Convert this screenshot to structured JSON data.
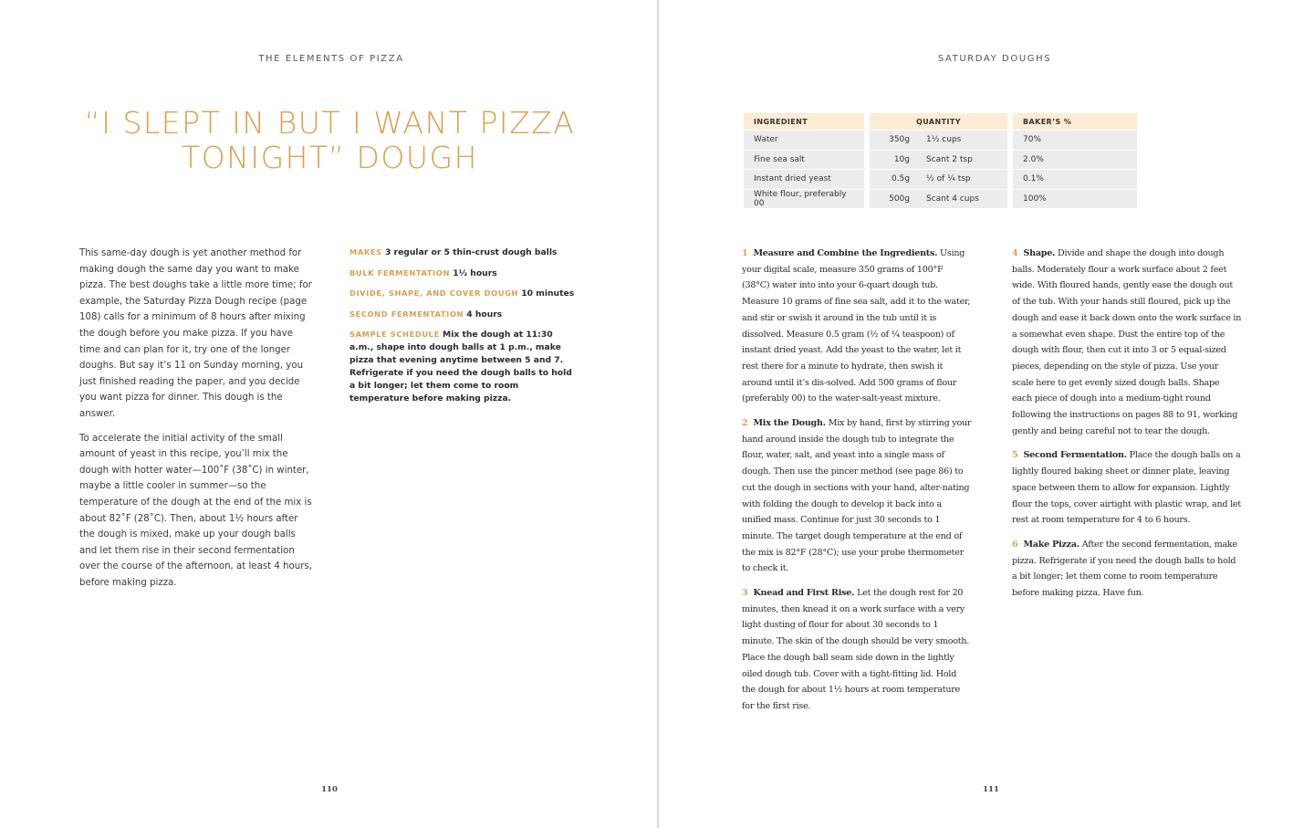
{
  "left_page": {
    "running_head": "THE ELEMENTS OF PIZZA",
    "title_line1": "“I SLEPT IN BUT I WANT PIZZA",
    "title_line2": "TONIGHT” DOUGH",
    "intro": [
      "This same-day dough is yet another method for making dough the same day you want to make pizza. The best doughs take a little more time; for example, the Saturday Pizza Dough recipe (page 108) calls for a minimum of 8 hours after mixing the dough before you make pizza. If you have time and can plan for it, try one of the longer doughs. But say it’s 11 on Sunday morning, you just finished reading the paper, and you decide you want pizza for dinner. This dough is the answer.",
      "To accelerate the initial activity of the small amount of yeast in this recipe, you’ll mix the dough with hotter water—100˚F (38˚C) in winter, maybe a little cooler in summer—so the temperature of the dough at the end of the mix is about 82˚F (28˚C). Then, about 1½ hours after the dough is mixed, make up your dough balls and let them rise in their second fermentation over the course of the afternoon, at least 4 hours, before making pizza."
    ],
    "meta": [
      {
        "label": "MAKES",
        "value": "3 regular or 5 thin-crust dough balls"
      },
      {
        "label": "BULK FERMENTATION",
        "value": "1½ hours"
      },
      {
        "label": "DIVIDE, SHAPE, AND COVER DOUGH",
        "value": "10 minutes"
      },
      {
        "label": "SECOND FERMENTATION",
        "value": "4 hours"
      },
      {
        "label": "SAMPLE SCHEDULE",
        "value": "Mix the dough at 11:30 a.m., shape into dough balls at 1 p.m., make pizza that evening anytime between 5 and 7. Refrigerate if you need the dough balls to hold a bit longer; let them come to room temperature before making pizza."
      }
    ],
    "page_number": "110"
  },
  "right_page": {
    "running_head": "SATURDAY DOUGHS",
    "table": {
      "headers": [
        "INGREDIENT",
        "QUANTITY",
        "BAKER’S %"
      ],
      "rows": [
        [
          "Water",
          "350g",
          "1½ cups",
          "70%"
        ],
        [
          "Fine sea salt",
          "10g",
          "Scant 2 tsp",
          "2.0%"
        ],
        [
          "Instant dried yeast",
          "0.5g",
          "½ of ¼ tsp",
          "0.1%"
        ],
        [
          "White flour, preferably 00",
          "500g",
          "Scant 4 cups",
          "100%"
        ]
      ]
    },
    "steps": [
      {
        "num": "1",
        "title": "Measure and Combine the Ingredients.",
        "text": "Using your digital scale, measure 350 grams of 100°F (38°C) water into into your 6-quart dough tub. Measure 10 grams of fine sea salt, add it to the water, and stir or swish it around in the tub until it is dissolved. Measure 0.5 gram (½ of ¼ teaspoon) of instant dried yeast. Add the yeast to the water, let it rest there for a minute to hydrate, then swish it around until it’s dis-solved. Add 500 grams of flour (preferably 00) to the water-salt-yeast mixture."
      },
      {
        "num": "2",
        "title": "Mix the Dough.",
        "text": "Mix by hand, first by stirring your hand around inside the dough tub to integrate the flour, water, salt, and yeast into a single mass of dough. Then use the pincer method (see page 86) to cut the dough in sections with your hand, alter-nating with folding the dough to develop it back into a unified mass. Continue for just 30 seconds to 1 minute. The target dough temperature at the end of the mix is 82°F (28°C); use your probe thermometer to check it."
      },
      {
        "num": "3",
        "title": "Knead and First Rise.",
        "text": "Let the dough rest for 20 minutes, then knead it on a work surface with a very light dusting of flour for about 30 seconds to 1 minute. The skin of the dough should be very smooth. Place the dough ball seam side down in the lightly oiled dough tub. Cover with a tight-fitting lid. Hold the dough for about 1½ hours at room temperature for the first rise."
      },
      {
        "num": "4",
        "title": "Shape.",
        "text": "Divide and shape the dough into dough balls. Moderately flour a work surface about 2 feet wide. With floured hands, gently ease the dough out of the tub. With your hands still floured, pick up the dough and ease it back down onto the work surface in a somewhat even shape. Dust the entire top of the dough with flour, then cut it into 3 or 5 equal-sized pieces, depending on the style of pizza. Use your scale here to get evenly sized dough balls. Shape each piece of dough into a medium-tight round following the instructions on pages 88 to 91, working gently and being careful not to tear the dough."
      },
      {
        "num": "5",
        "title": "Second Fermentation.",
        "text": "Place the dough balls on a lightly floured baking sheet or dinner plate, leaving space between them to allow for expansion. Lightly flour the tops, cover airtight with plastic wrap, and let rest at room temperature for 4 to 6 hours."
      },
      {
        "num": "6",
        "title": "Make Pizza.",
        "text": "After the second fermentation, make pizza. Refrigerate if you need the dough balls to hold a bit longer; let them come to room temperature before making pizza. Have fun."
      }
    ],
    "page_number": "111"
  },
  "colors": {
    "accent": "#d9a04e",
    "table_header": "#fbecd3",
    "table_row": "#ececec"
  }
}
